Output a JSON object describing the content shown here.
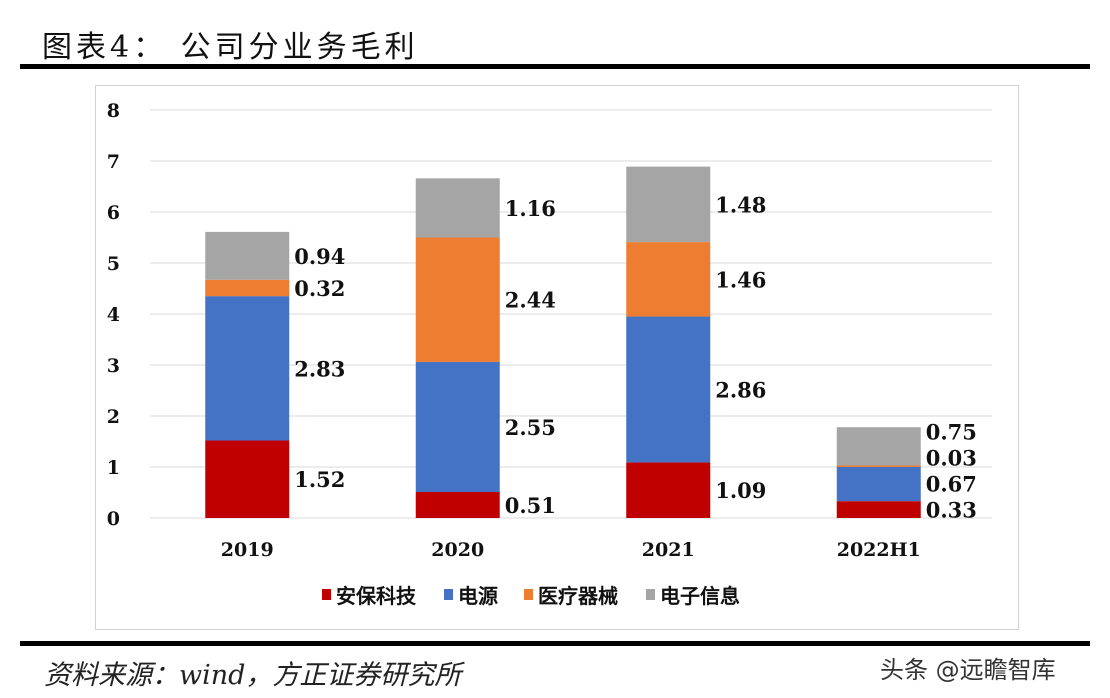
{
  "header": {
    "title": "图表4：  公司分业务毛利"
  },
  "footer": {
    "source": "资料来源：wind，方正证券研究所",
    "watermark": "头条 @远瞻智库"
  },
  "chart_data": {
    "type": "bar",
    "stacked": true,
    "categories": [
      "2019",
      "2020",
      "2021",
      "2022H1"
    ],
    "series": [
      {
        "name": "安保科技",
        "color": "#c00000",
        "values": [
          1.52,
          0.51,
          1.09,
          0.33
        ]
      },
      {
        "name": "电源",
        "color": "#4472c4",
        "values": [
          2.83,
          2.55,
          2.86,
          0.67
        ]
      },
      {
        "name": "医疗器械",
        "color": "#ed7d31",
        "values": [
          0.32,
          2.44,
          1.46,
          0.03
        ]
      },
      {
        "name": "电子信息",
        "color": "#a5a5a5",
        "values": [
          0.94,
          1.16,
          1.48,
          0.75
        ]
      }
    ],
    "ylim": [
      0,
      8
    ],
    "yticks": [
      0,
      1,
      2,
      3,
      4,
      5,
      6,
      7,
      8
    ],
    "grid": true,
    "legend": "bottom"
  }
}
